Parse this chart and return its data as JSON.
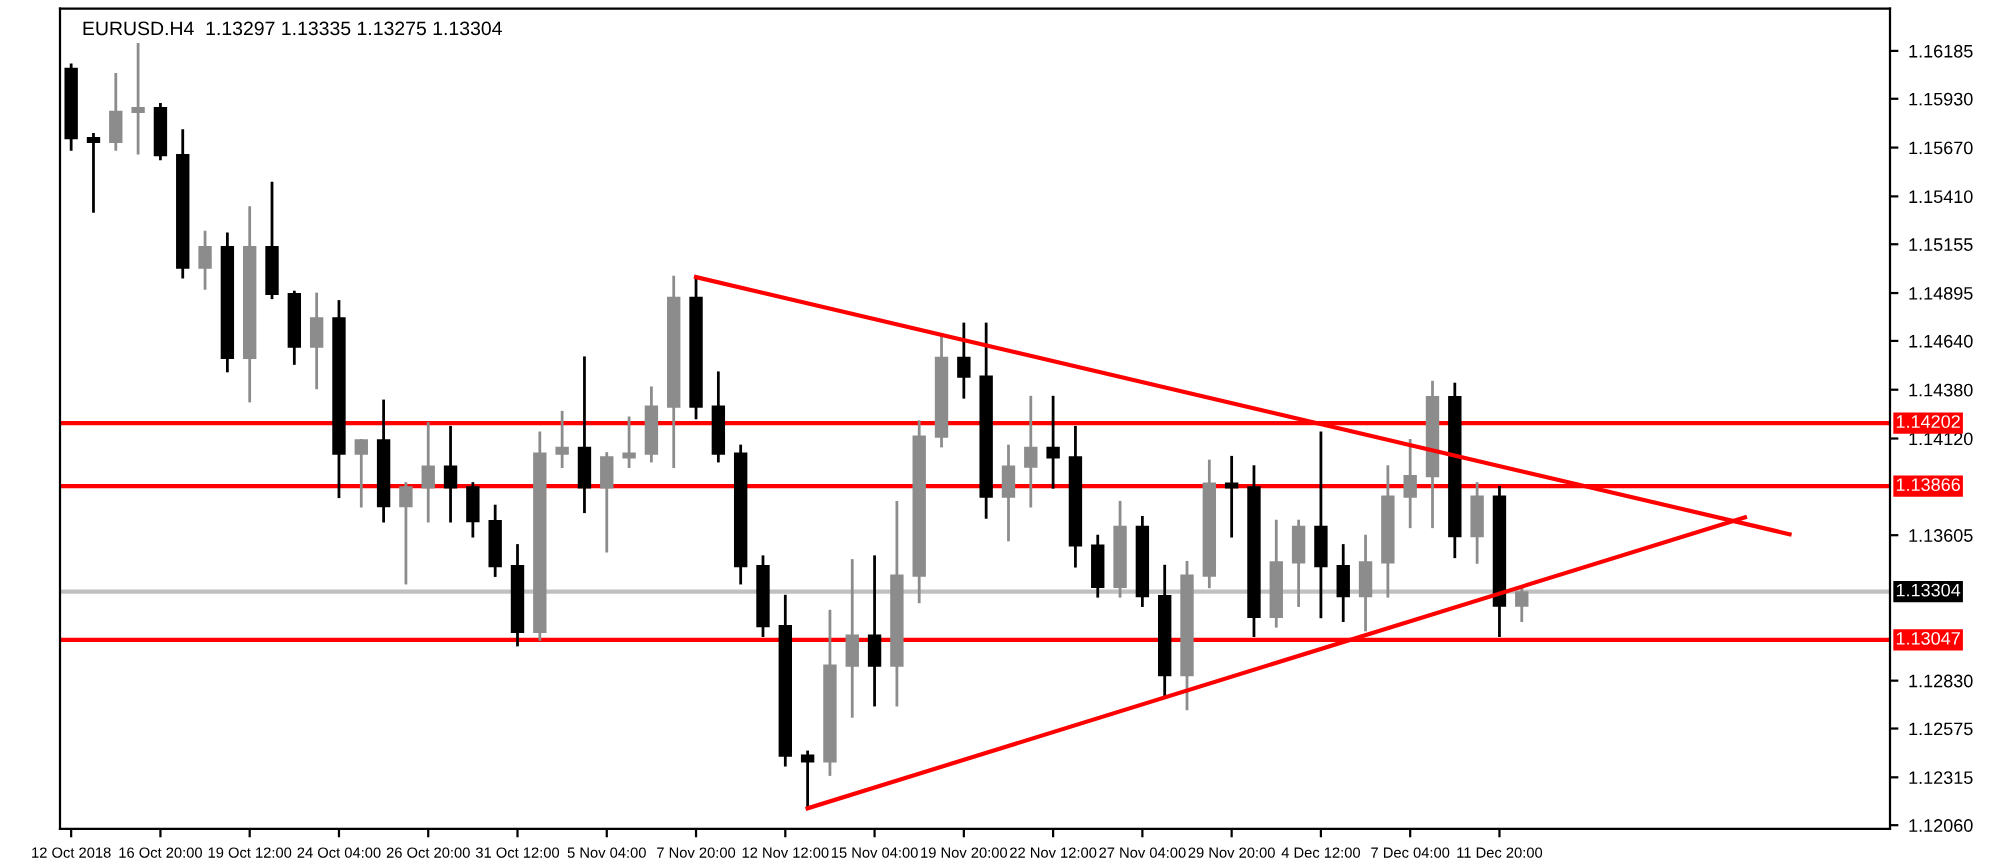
{
  "chart_data": {
    "type": "candlestick",
    "title": "EURUSD.H4  1.13297 1.13335 1.13275 1.13304",
    "categories": [
      "12 Oct 2018",
      null,
      null,
      null,
      "16 Oct 20:00",
      null,
      null,
      null,
      "19 Oct 12:00",
      null,
      null,
      null,
      "24 Oct 04:00",
      null,
      null,
      null,
      "26 Oct 20:00",
      null,
      null,
      null,
      "31 Oct 12:00",
      null,
      null,
      null,
      "5 Nov 04:00",
      null,
      null,
      null,
      "7 Nov 20:00",
      null,
      null,
      null,
      "12 Nov 12:00",
      null,
      null,
      null,
      "15 Nov 04:00",
      null,
      null,
      null,
      "19 Nov 20:00",
      null,
      null,
      null,
      "22 Nov 12:00",
      null,
      null,
      null,
      "27 Nov 04:00",
      null,
      null,
      null,
      "29 Nov 20:00",
      null,
      null,
      null,
      "4 Dec 12:00",
      null,
      null,
      null,
      "7 Dec 04:00",
      null,
      null,
      null,
      "11 Dec 20:00",
      null,
      null,
      null,
      null,
      null,
      null,
      null,
      null,
      null,
      null,
      null,
      null,
      null,
      null,
      null,
      null,
      null
    ],
    "ohlc": [
      [
        1.1609,
        1.1611,
        1.1566,
        1.1572
      ],
      [
        1.1572,
        1.1574,
        1.1533,
        1.157
      ],
      [
        1.157,
        1.1606,
        1.1566,
        1.1586
      ],
      [
        1.1586,
        1.1622,
        1.1564,
        1.1588
      ],
      [
        1.1588,
        1.159,
        1.1561,
        1.1563
      ],
      [
        1.1563,
        1.1576,
        1.1498,
        1.1503
      ],
      [
        1.1503,
        1.1522,
        1.1492,
        1.1514
      ],
      [
        1.1514,
        1.1521,
        1.1448,
        1.1455
      ],
      [
        1.1455,
        1.1535,
        1.1432,
        1.1514
      ],
      [
        1.1514,
        1.1548,
        1.1487,
        1.1489
      ],
      [
        1.1489,
        1.149,
        1.1452,
        1.1461
      ],
      [
        1.1461,
        1.1489,
        1.1439,
        1.1476
      ],
      [
        1.1476,
        1.1485,
        1.1381,
        1.1404
      ],
      [
        1.1404,
        1.1411,
        1.1376,
        1.1411
      ],
      [
        1.1411,
        1.1432,
        1.1368,
        1.1376
      ],
      [
        1.1376,
        1.1388,
        1.1335,
        1.1386
      ],
      [
        1.1386,
        1.142,
        1.1368,
        1.1397
      ],
      [
        1.1397,
        1.1418,
        1.1368,
        1.1386
      ],
      [
        1.1386,
        1.1388,
        1.136,
        1.1368
      ],
      [
        1.1368,
        1.1376,
        1.1339,
        1.1344
      ],
      [
        1.1344,
        1.1355,
        1.1302,
        1.1309
      ],
      [
        1.1309,
        1.1415,
        1.1305,
        1.1404
      ],
      [
        1.1404,
        1.1426,
        1.1397,
        1.1407
      ],
      [
        1.1407,
        1.1455,
        1.1373,
        1.1386
      ],
      [
        1.1386,
        1.1404,
        1.1352,
        1.1402
      ],
      [
        1.1402,
        1.1423,
        1.1397,
        1.1404
      ],
      [
        1.1404,
        1.1439,
        1.14,
        1.1429
      ],
      [
        1.1429,
        1.1498,
        1.1397,
        1.1487
      ],
      [
        1.1487,
        1.1498,
        1.1423,
        1.1429
      ],
      [
        1.1429,
        1.1447,
        1.14,
        1.1404
      ],
      [
        1.1404,
        1.1408,
        1.1335,
        1.1344
      ],
      [
        1.1344,
        1.1349,
        1.1307,
        1.1312
      ],
      [
        1.1312,
        1.1328,
        1.1238,
        1.1243
      ],
      [
        1.1243,
        1.1245,
        1.1215,
        1.124
      ],
      [
        1.124,
        1.132,
        1.1233,
        1.1291
      ],
      [
        1.1291,
        1.1347,
        1.1264,
        1.1307
      ],
      [
        1.1307,
        1.1349,
        1.127,
        1.1291
      ],
      [
        1.1291,
        1.1378,
        1.127,
        1.1339
      ],
      [
        1.1339,
        1.1421,
        1.1325,
        1.1413
      ],
      [
        1.1413,
        1.1466,
        1.1408,
        1.1455
      ],
      [
        1.1455,
        1.1473,
        1.1434,
        1.1445
      ],
      [
        1.1445,
        1.1473,
        1.137,
        1.1381
      ],
      [
        1.1381,
        1.1408,
        1.1358,
        1.1397
      ],
      [
        1.1397,
        1.1434,
        1.1376,
        1.1407
      ],
      [
        1.1407,
        1.1434,
        1.1386,
        1.1402
      ],
      [
        1.1402,
        1.1418,
        1.1344,
        1.1355
      ],
      [
        1.1355,
        1.136,
        1.1328,
        1.1333
      ],
      [
        1.1333,
        1.1378,
        1.1328,
        1.1365
      ],
      [
        1.1365,
        1.137,
        1.1323,
        1.1328
      ],
      [
        1.1328,
        1.1344,
        1.1275,
        1.1286
      ],
      [
        1.1286,
        1.1346,
        1.1268,
        1.1339
      ],
      [
        1.1339,
        1.14,
        1.1333,
        1.1388
      ],
      [
        1.1388,
        1.1402,
        1.136,
        1.1386
      ],
      [
        1.1386,
        1.1397,
        1.1307,
        1.1317
      ],
      [
        1.1317,
        1.1368,
        1.1312,
        1.1346
      ],
      [
        1.1346,
        1.1368,
        1.1323,
        1.1365
      ],
      [
        1.1365,
        1.1415,
        1.1317,
        1.1344
      ],
      [
        1.1344,
        1.1355,
        1.1315,
        1.1328
      ],
      [
        1.1328,
        1.136,
        1.131,
        1.1346
      ],
      [
        1.1346,
        1.1397,
        1.1328,
        1.1381
      ],
      [
        1.1381,
        1.1411,
        1.1365,
        1.1392
      ],
      [
        1.1392,
        1.1442,
        1.1365,
        1.1434
      ],
      [
        1.1434,
        1.1441,
        1.1349,
        1.136
      ],
      [
        1.136,
        1.1388,
        1.1346,
        1.1381
      ],
      [
        1.1381,
        1.1386,
        1.1307,
        1.1323
      ],
      [
        1.1323,
        1.1333,
        1.1315,
        1.133
      ],
      null,
      null,
      null,
      null,
      null,
      null,
      null,
      null,
      null,
      null,
      null,
      null,
      null,
      null,
      null,
      null
    ],
    "series": [
      {
        "type": "line",
        "color": "#ff0000",
        "values": [
          null,
          null,
          null,
          null,
          null,
          null,
          null,
          null,
          null,
          null,
          null,
          null,
          null,
          null,
          null,
          null,
          null,
          null,
          null,
          null,
          null,
          null,
          null,
          null,
          null,
          null,
          null,
          null,
          1.1498,
          null,
          null,
          null,
          null,
          null,
          null,
          null,
          null,
          null,
          null,
          null,
          null,
          null,
          null,
          null,
          null,
          null,
          null,
          null,
          null,
          null,
          null,
          null,
          null,
          null,
          null,
          null,
          null,
          null,
          null,
          null,
          null,
          null,
          null,
          null,
          null,
          null,
          null,
          null,
          null,
          null,
          null,
          null,
          null,
          null,
          null,
          null,
          null,
          1.1361,
          null,
          null,
          null,
          null
        ]
      },
      {
        "type": "line",
        "color": "#ff0000",
        "values": [
          null,
          null,
          null,
          null,
          null,
          null,
          null,
          null,
          null,
          null,
          null,
          null,
          null,
          null,
          null,
          null,
          null,
          null,
          null,
          null,
          null,
          null,
          null,
          null,
          null,
          null,
          null,
          null,
          null,
          null,
          null,
          null,
          null,
          1.1215,
          null,
          null,
          null,
          null,
          null,
          null,
          null,
          null,
          null,
          null,
          null,
          null,
          null,
          null,
          null,
          null,
          null,
          null,
          null,
          null,
          null,
          null,
          null,
          null,
          null,
          null,
          null,
          null,
          null,
          null,
          null,
          null,
          null,
          null,
          null,
          null,
          null,
          null,
          null,
          null,
          null,
          1.137,
          null,
          null,
          null,
          null,
          null,
          null
        ]
      }
    ],
    "ylim": [
      1.1204,
      1.1641
    ],
    "yticks": [
      1.16185,
      {
        "value": 1.1593,
        "label": "1.15930"
      },
      {
        "value": 1.1567,
        "label": "1.15670"
      },
      {
        "value": 1.1541,
        "label": "1.15410"
      },
      1.15155,
      1.14895,
      {
        "value": 1.1464,
        "label": "1.14640"
      },
      {
        "value": 1.1438,
        "label": "1.14380"
      },
      {
        "value": 1.1412,
        "label": "1.14120"
      },
      1.13605,
      {
        "value": 1.1283,
        "label": "1.12830"
      },
      1.12575,
      1.12315,
      {
        "value": 1.1206,
        "label": "1.12060"
      }
    ],
    "ref_lines": [
      {
        "axis": "y",
        "value": 1.14202,
        "label": "1.14202",
        "color": "#ff0000"
      },
      {
        "axis": "y",
        "value": 1.13866,
        "label": "1.13866",
        "color": "#ff0000"
      },
      {
        "axis": "y",
        "value": 1.13047,
        "label": "1.13047",
        "color": "#ff0000"
      },
      {
        "axis": "y",
        "value": 1.13304,
        "label": "1.13304",
        "color": "#c0c0c0"
      }
    ],
    "grid": false,
    "legend": false
  }
}
